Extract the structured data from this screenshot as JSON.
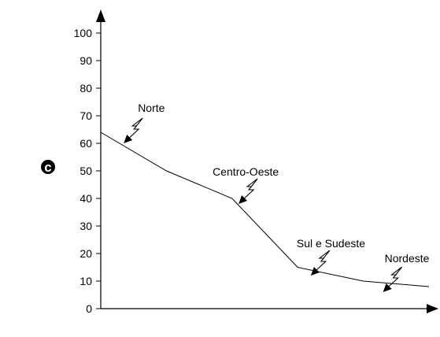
{
  "panel_label": "c",
  "chart_data": {
    "type": "line",
    "x": [
      0,
      1,
      2,
      3,
      4,
      5
    ],
    "values": [
      64,
      50,
      40,
      15,
      10,
      8
    ],
    "ylim": [
      0,
      100
    ],
    "yticks": [
      0,
      10,
      20,
      30,
      40,
      50,
      60,
      70,
      80,
      90,
      100
    ],
    "title": "",
    "xlabel": "",
    "ylabel": "",
    "grid": false,
    "annotations": [
      {
        "text": "Norte",
        "x": 0.35,
        "y": 60
      },
      {
        "text": "Centro-Oeste",
        "x": 2.1,
        "y": 38
      },
      {
        "text": "Sul e Sudeste",
        "x": 3.2,
        "y": 12
      },
      {
        "text": "Nordeste",
        "x": 4.3,
        "y": 6
      }
    ]
  }
}
